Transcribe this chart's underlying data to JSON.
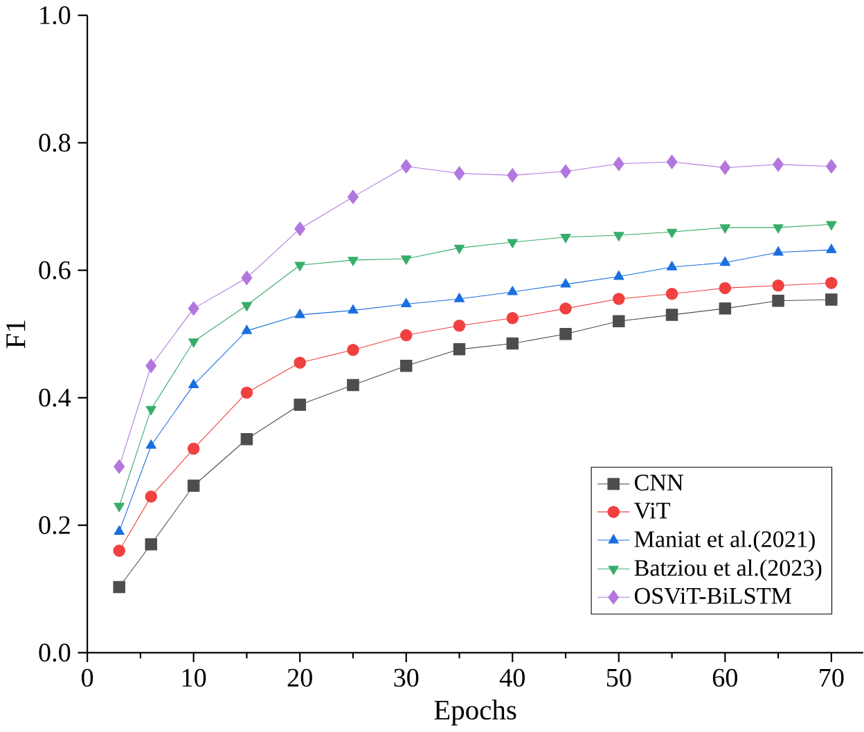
{
  "chart_data": {
    "type": "line",
    "xlabel": "Epochs",
    "ylabel": "F1",
    "x": [
      3,
      6,
      10,
      15,
      20,
      25,
      30,
      35,
      40,
      45,
      50,
      55,
      60,
      65,
      70
    ],
    "series": [
      {
        "name": "CNN",
        "color": "#4d4d4d",
        "marker": "square",
        "values": [
          0.103,
          0.17,
          0.262,
          0.335,
          0.389,
          0.42,
          0.45,
          0.476,
          0.485,
          0.5,
          0.52,
          0.53,
          0.54,
          0.552,
          0.554
        ]
      },
      {
        "name": "ViT",
        "color": "#f04040",
        "marker": "circle",
        "values": [
          0.16,
          0.245,
          0.32,
          0.408,
          0.455,
          0.475,
          0.498,
          0.513,
          0.525,
          0.54,
          0.555,
          0.563,
          0.572,
          0.576,
          0.58
        ]
      },
      {
        "name": "Maniat et al.(2021)",
        "color": "#1a6fdf",
        "marker": "triangle",
        "values": [
          0.19,
          0.325,
          0.42,
          0.505,
          0.53,
          0.537,
          0.547,
          0.555,
          0.566,
          0.578,
          0.59,
          0.605,
          0.612,
          0.628,
          0.632
        ]
      },
      {
        "name": "Batziou et al.(2023)",
        "color": "#37ad6b",
        "marker": "triangle down",
        "values": [
          0.23,
          0.382,
          0.488,
          0.545,
          0.608,
          0.616,
          0.618,
          0.635,
          0.644,
          0.652,
          0.655,
          0.66,
          0.667,
          0.667,
          0.672
        ]
      },
      {
        "name": "OSViT-BiLSTM",
        "color": "#b177de",
        "marker": "diamond",
        "values": [
          0.292,
          0.45,
          0.54,
          0.588,
          0.665,
          0.715,
          0.763,
          0.752,
          0.749,
          0.755,
          0.767,
          0.77,
          0.761,
          0.766,
          0.763
        ]
      }
    ],
    "xlim": [
      0,
      73
    ],
    "ylim": [
      0,
      1.0
    ],
    "xticks": [
      0,
      10,
      20,
      30,
      40,
      50,
      60,
      70
    ],
    "yticks": [
      {
        "value": 0,
        "label": "0.0"
      },
      {
        "value": 0.2,
        "label": "0.2"
      },
      {
        "value": 0.4,
        "label": "0.4"
      },
      {
        "value": 0.6,
        "label": "0.6"
      },
      {
        "value": 0.8,
        "label": "0.8"
      },
      {
        "value": 1.0,
        "label": "1.0"
      }
    ],
    "legend": "bottom right",
    "grid": false,
    "line_style": "solid"
  }
}
